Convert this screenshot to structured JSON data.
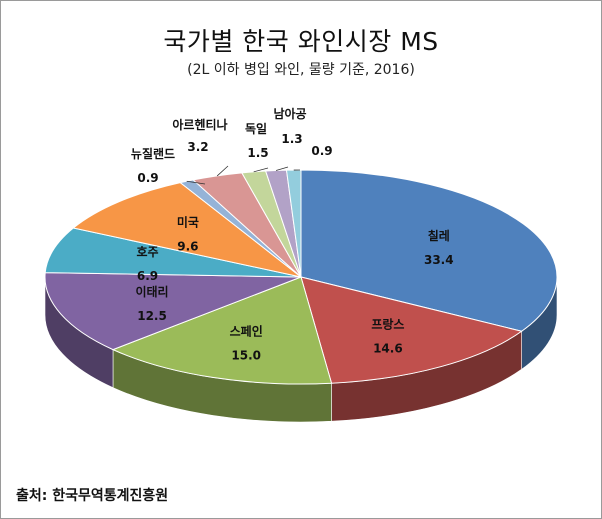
{
  "chart_data": {
    "type": "pie",
    "title": "국가별 한국 와인시장 MS",
    "subtitle": "(2L 이하 병입 와인, 물량 기준, 2016)",
    "source": "출처: 한국무역통계진흥원",
    "slices": [
      {
        "name": "칠레",
        "value": 33.4,
        "color": "#4f81bd"
      },
      {
        "name": "프랑스",
        "value": 14.6,
        "color": "#c0504d"
      },
      {
        "name": "스페인",
        "value": 15.0,
        "color": "#9bbb59"
      },
      {
        "name": "이태리",
        "value": 12.5,
        "color": "#8064a2"
      },
      {
        "name": "호주",
        "value": 6.9,
        "color": "#4bacc6"
      },
      {
        "name": "미국",
        "value": 9.6,
        "color": "#f79646"
      },
      {
        "name": "뉴질랜드",
        "value": 0.9,
        "color": "#95b3d7"
      },
      {
        "name": "아르헨티나",
        "value": 3.2,
        "color": "#d99694"
      },
      {
        "name": "독일",
        "value": 1.5,
        "color": "#c3d69b"
      },
      {
        "name": "남아공",
        "value": 1.3,
        "color": "#b2a2c7"
      },
      {
        "name": "",
        "value": 0.9,
        "color": "#93cddd"
      }
    ]
  }
}
